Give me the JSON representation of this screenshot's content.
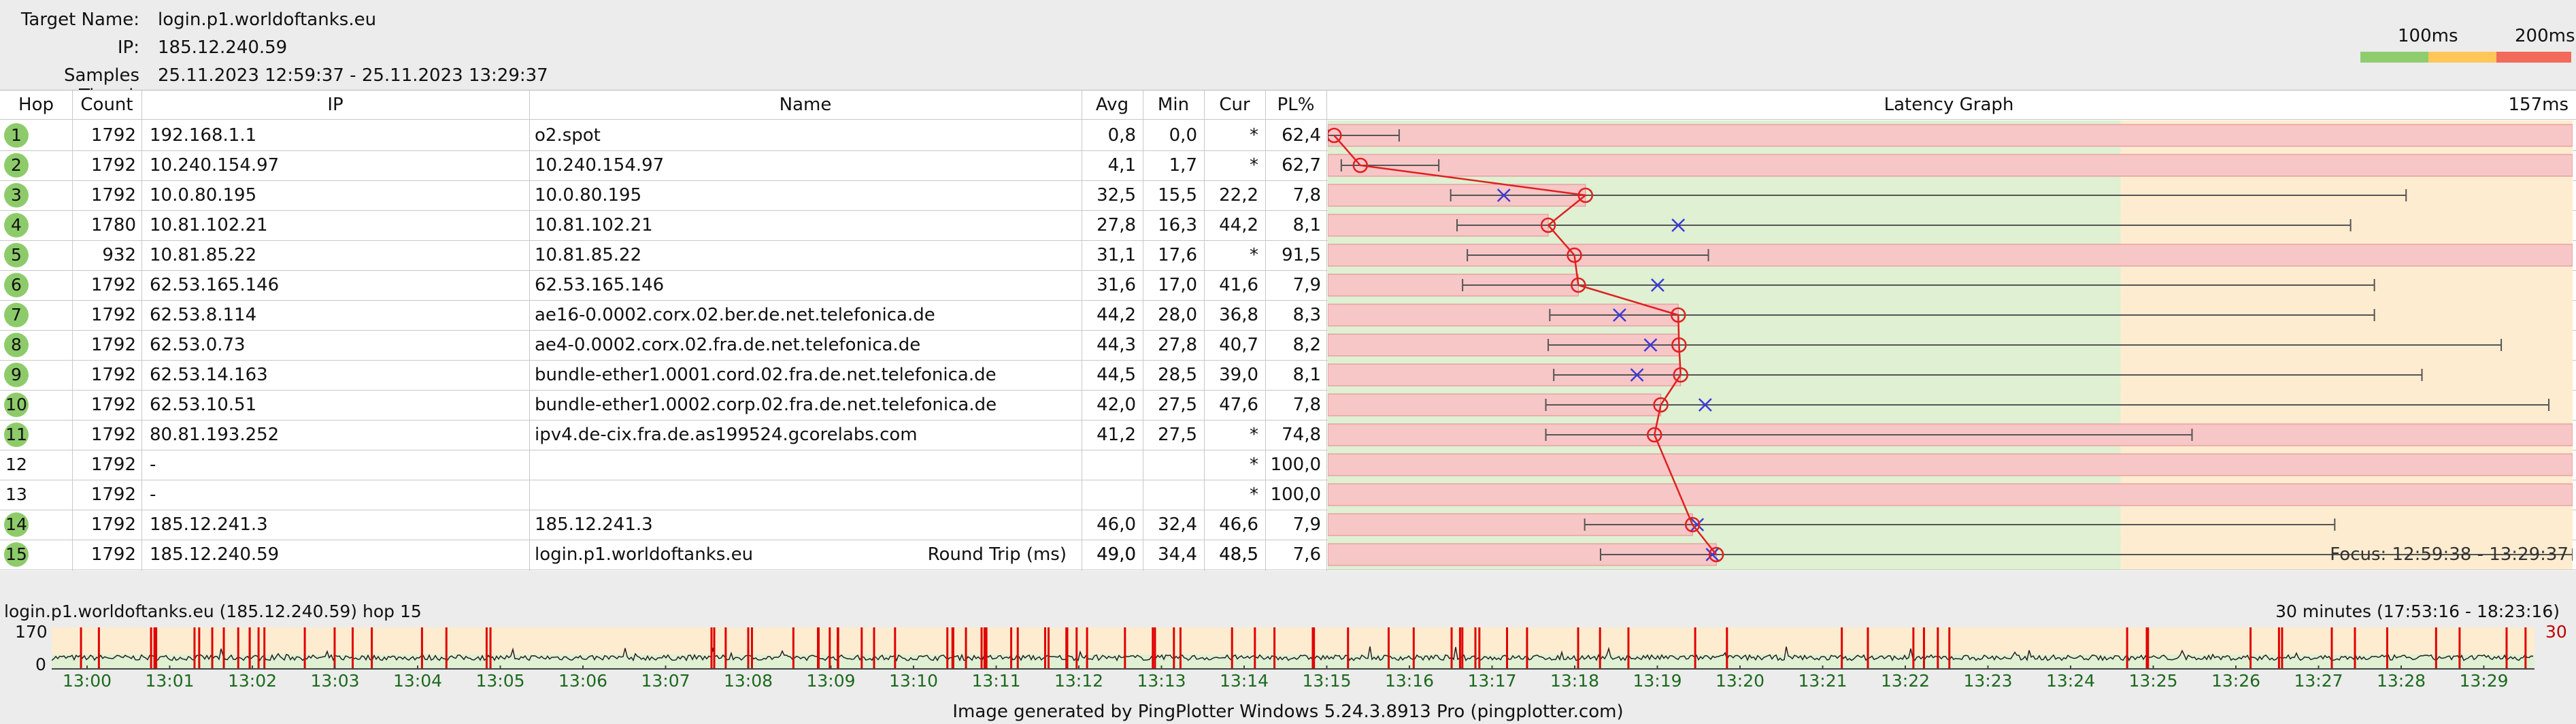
{
  "header": {
    "target_name_label": "Target Name:",
    "target_name": "login.p1.worldoftanks.eu",
    "ip_label": "IP:",
    "ip": "185.12.240.59",
    "samples_label": "Samples Timed:",
    "samples": "25.11.2023 12:59:37 - 25.11.2023 13:29:37"
  },
  "legend": {
    "label_100": "100ms",
    "label_200": "200ms",
    "colors": {
      "good": "#8fcc6e",
      "warn": "#ffc75a",
      "bad": "#f26a5a"
    }
  },
  "columns": {
    "hop": "Hop",
    "count": "Count",
    "ip": "IP",
    "name": "Name",
    "avg": "Avg",
    "min": "Min",
    "cur": "Cur",
    "pl": "PL%",
    "graph": "Latency Graph",
    "graph_max": "157ms"
  },
  "graph_scale_ms": 157,
  "rows": [
    {
      "hop": "1",
      "count": "1792",
      "ip": "192.168.1.1",
      "name": "o2.spot",
      "avg": "0,8",
      "min": "0,0",
      "cur": "*",
      "pl": "62,4",
      "avg_ms": 0.8,
      "min_ms": 0.0,
      "cur_ms": null,
      "max_ms": 9,
      "pl_frac": 0.624,
      "responding": true
    },
    {
      "hop": "2",
      "count": "1792",
      "ip": "10.240.154.97",
      "name": "10.240.154.97",
      "avg": "4,1",
      "min": "1,7",
      "cur": "*",
      "pl": "62,7",
      "avg_ms": 4.1,
      "min_ms": 1.7,
      "cur_ms": null,
      "max_ms": 14,
      "pl_frac": 0.627,
      "responding": true
    },
    {
      "hop": "3",
      "count": "1792",
      "ip": "10.0.80.195",
      "name": "10.0.80.195",
      "avg": "32,5",
      "min": "15,5",
      "cur": "22,2",
      "pl": "7,8",
      "avg_ms": 32.5,
      "min_ms": 15.5,
      "cur_ms": 22.2,
      "max_ms": 136,
      "pl_frac": 0.078,
      "responding": true
    },
    {
      "hop": "4",
      "count": "1780",
      "ip": "10.81.102.21",
      "name": "10.81.102.21",
      "avg": "27,8",
      "min": "16,3",
      "cur": "44,2",
      "pl": "8,1",
      "avg_ms": 27.8,
      "min_ms": 16.3,
      "cur_ms": 44.2,
      "max_ms": 129,
      "pl_frac": 0.081,
      "responding": true
    },
    {
      "hop": "5",
      "count": "932",
      "ip": "10.81.85.22",
      "name": "10.81.85.22",
      "avg": "31,1",
      "min": "17,6",
      "cur": "*",
      "pl": "91,5",
      "avg_ms": 31.1,
      "min_ms": 17.6,
      "cur_ms": null,
      "max_ms": 48,
      "pl_frac": 0.915,
      "responding": true
    },
    {
      "hop": "6",
      "count": "1792",
      "ip": "62.53.165.146",
      "name": "62.53.165.146",
      "avg": "31,6",
      "min": "17,0",
      "cur": "41,6",
      "pl": "7,9",
      "avg_ms": 31.6,
      "min_ms": 17.0,
      "cur_ms": 41.6,
      "max_ms": 132,
      "pl_frac": 0.079,
      "responding": true
    },
    {
      "hop": "7",
      "count": "1792",
      "ip": "62.53.8.114",
      "name": "ae16-0.0002.corx.02.ber.de.net.telefonica.de",
      "avg": "44,2",
      "min": "28,0",
      "cur": "36,8",
      "pl": "8,3",
      "avg_ms": 44.2,
      "min_ms": 28.0,
      "cur_ms": 36.8,
      "max_ms": 132,
      "pl_frac": 0.083,
      "responding": true
    },
    {
      "hop": "8",
      "count": "1792",
      "ip": "62.53.0.73",
      "name": "ae4-0.0002.corx.02.fra.de.net.telefonica.de",
      "avg": "44,3",
      "min": "27,8",
      "cur": "40,7",
      "pl": "8,2",
      "avg_ms": 44.3,
      "min_ms": 27.8,
      "cur_ms": 40.7,
      "max_ms": 148,
      "pl_frac": 0.082,
      "responding": true
    },
    {
      "hop": "9",
      "count": "1792",
      "ip": "62.53.14.163",
      "name": "bundle-ether1.0001.cord.02.fra.de.net.telefonica.de",
      "avg": "44,5",
      "min": "28,5",
      "cur": "39,0",
      "pl": "8,1",
      "avg_ms": 44.5,
      "min_ms": 28.5,
      "cur_ms": 39.0,
      "max_ms": 138,
      "pl_frac": 0.081,
      "responding": true
    },
    {
      "hop": "10",
      "count": "1792",
      "ip": "62.53.10.51",
      "name": "bundle-ether1.0002.corp.02.fra.de.net.telefonica.de",
      "avg": "42,0",
      "min": "27,5",
      "cur": "47,6",
      "pl": "7,8",
      "avg_ms": 42.0,
      "min_ms": 27.5,
      "cur_ms": 47.6,
      "max_ms": 154,
      "pl_frac": 0.078,
      "responding": true
    },
    {
      "hop": "11",
      "count": "1792",
      "ip": "80.81.193.252",
      "name": "ipv4.de-cix.fra.de.as199524.gcorelabs.com",
      "avg": "41,2",
      "min": "27,5",
      "cur": "*",
      "pl": "74,8",
      "avg_ms": 41.2,
      "min_ms": 27.5,
      "cur_ms": null,
      "max_ms": 109,
      "pl_frac": 0.748,
      "responding": true
    },
    {
      "hop": "12",
      "count": "1792",
      "ip": "-",
      "name": "",
      "avg": "",
      "min": "",
      "cur": "*",
      "pl": "100,0",
      "avg_ms": null,
      "min_ms": null,
      "cur_ms": null,
      "max_ms": null,
      "pl_frac": 1.0,
      "responding": false
    },
    {
      "hop": "13",
      "count": "1792",
      "ip": "-",
      "name": "",
      "avg": "",
      "min": "",
      "cur": "*",
      "pl": "100,0",
      "avg_ms": null,
      "min_ms": null,
      "cur_ms": null,
      "max_ms": null,
      "pl_frac": 1.0,
      "responding": false
    },
    {
      "hop": "14",
      "count": "1792",
      "ip": "185.12.241.3",
      "name": "185.12.241.3",
      "avg": "46,0",
      "min": "32,4",
      "cur": "46,6",
      "pl": "7,9",
      "avg_ms": 46.0,
      "min_ms": 32.4,
      "cur_ms": 46.6,
      "max_ms": 127,
      "pl_frac": 0.079,
      "responding": true
    },
    {
      "hop": "15",
      "count": "1792",
      "ip": "185.12.240.59",
      "name": "login.p1.worldoftanks.eu",
      "avg": "49,0",
      "min": "34,4",
      "cur": "48,5",
      "pl": "7,6",
      "avg_ms": 49.0,
      "min_ms": 34.4,
      "cur_ms": 48.5,
      "max_ms": 157,
      "pl_frac": 0.076,
      "responding": true
    }
  ],
  "round_trip": {
    "label": "Round Trip (ms)",
    "avg": "49,0",
    "cur": "48,5"
  },
  "focus": "Focus: 12:59:38 - 13:29:37",
  "timegraph": {
    "title": "login.p1.worldoftanks.eu (185.12.240.59) hop 15",
    "duration": "30 minutes (17:53:16 - 18:23:16)",
    "y_max": "170",
    "y_min": "0",
    "pl_max": "30",
    "ticks": [
      "13:00",
      "13:01",
      "13:02",
      "13:03",
      "13:04",
      "13:05",
      "13:06",
      "13:07",
      "13:08",
      "13:09",
      "13:10",
      "13:11",
      "13:12",
      "13:13",
      "13:14",
      "13:15",
      "13:16",
      "13:17",
      "13:18",
      "13:19",
      "13:20",
      "13:21",
      "13:22",
      "13:23",
      "13:24",
      "13:25",
      "13:26",
      "13:27",
      "13:28",
      "13:29"
    ]
  },
  "footer": "Image generated by PingPlotter Windows 5.24.3.8913 Pro (pingplotter.com)"
}
